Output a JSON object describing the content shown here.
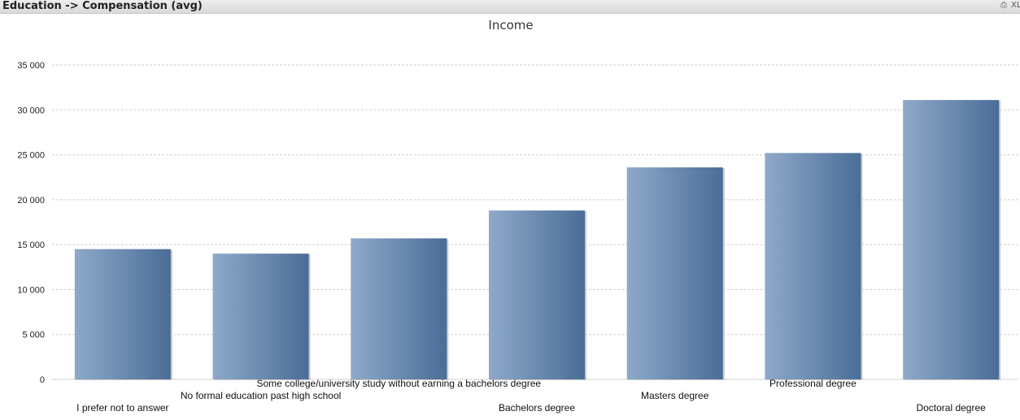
{
  "window": {
    "title": "Education -> Compensation (avg)",
    "controls": [
      {
        "name": "print-icon",
        "symbol": "⎙"
      },
      {
        "name": "xl-export-icon",
        "symbol": "XL"
      }
    ]
  },
  "chart_data": {
    "type": "bar",
    "title": "Income",
    "xlabel": "",
    "ylabel": "",
    "categories": [
      "I prefer not to answer",
      "No formal education past high school",
      "Some college/university study without earning a bachelors degree",
      "Bachelors degree",
      "Masters degree",
      "Professional degree",
      "Doctoral degree"
    ],
    "values": [
      14500,
      14000,
      15700,
      18800,
      23600,
      25200,
      31100
    ],
    "ylim": [
      0,
      35000
    ],
    "yticks": [
      0,
      5000,
      10000,
      15000,
      20000,
      25000,
      30000,
      35000
    ],
    "ytick_labels": [
      "0",
      "5 000",
      "10 000",
      "15 000",
      "20 000",
      "25 000",
      "30 000",
      "35 000"
    ],
    "grid": true,
    "legend": "none",
    "colors": {
      "bar_light": "#8ea9c9",
      "bar_dark": "#4a6d97",
      "grid": "#d0d0d0"
    }
  }
}
